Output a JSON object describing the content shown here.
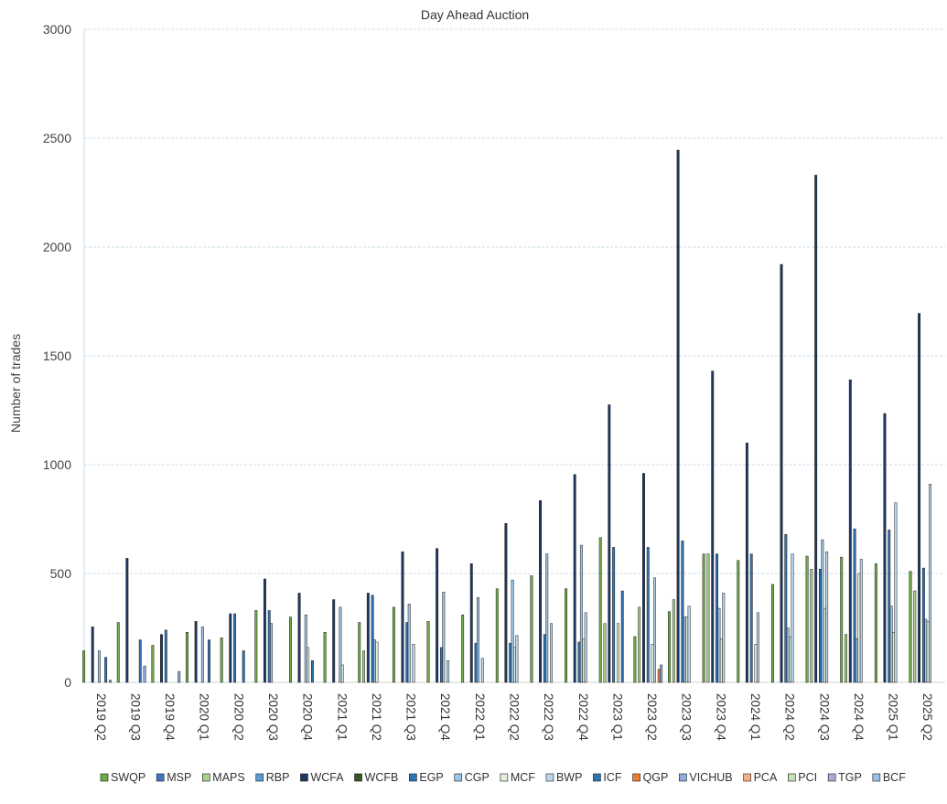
{
  "chart_data": {
    "type": "bar",
    "title": "Day Ahead Auction",
    "xlabel": "",
    "ylabel": "Number of trades",
    "ylim": [
      0,
      3000
    ],
    "yticks": [
      0,
      500,
      1000,
      1500,
      2000,
      2500,
      3000
    ],
    "grid": true,
    "legend_position": "bottom",
    "categories": [
      "2019 Q2",
      "2019 Q3",
      "2019 Q4",
      "2020 Q1",
      "2020 Q2",
      "2020 Q3",
      "2020 Q4",
      "2021 Q1",
      "2021 Q2",
      "2021 Q3",
      "2021 Q4",
      "2022 Q1",
      "2022 Q2",
      "2022 Q3",
      "2022 Q4",
      "2023 Q1",
      "2023 Q2",
      "2023 Q3",
      "2023 Q4",
      "2024 Q1",
      "2024 Q2",
      "2024 Q3",
      "2024 Q4",
      "2025 Q1",
      "2025 Q2"
    ],
    "series": [
      {
        "name": "SWQP",
        "color": "#70ad47",
        "values": [
          145,
          275,
          170,
          230,
          205,
          330,
          300,
          230,
          275,
          345,
          280,
          310,
          430,
          490,
          430,
          665,
          210,
          325,
          590,
          560,
          450,
          580,
          575,
          545,
          510
        ]
      },
      {
        "name": "MSP",
        "color": "#4472c4",
        "values": [
          0,
          0,
          0,
          0,
          0,
          0,
          0,
          0,
          0,
          0,
          0,
          0,
          0,
          0,
          0,
          0,
          0,
          0,
          0,
          0,
          0,
          0,
          0,
          0,
          0
        ]
      },
      {
        "name": "MAPS",
        "color": "#a9d18e",
        "values": [
          0,
          0,
          0,
          0,
          0,
          0,
          0,
          0,
          145,
          0,
          0,
          0,
          0,
          0,
          0,
          270,
          345,
          380,
          590,
          0,
          0,
          520,
          220,
          0,
          420
        ]
      },
      {
        "name": "RBP",
        "color": "#5b9bd5",
        "values": [
          0,
          0,
          0,
          0,
          0,
          0,
          0,
          0,
          0,
          0,
          0,
          0,
          0,
          0,
          0,
          0,
          0,
          0,
          0,
          0,
          0,
          0,
          0,
          0,
          0
        ]
      },
      {
        "name": "WCFA",
        "color": "#1f3864",
        "values": [
          255,
          570,
          220,
          280,
          315,
          475,
          410,
          380,
          410,
          600,
          615,
          545,
          730,
          835,
          955,
          1275,
          960,
          2445,
          1430,
          1100,
          1920,
          2330,
          1390,
          1235,
          1695
        ]
      },
      {
        "name": "WCFB",
        "color": "#375623",
        "values": [
          0,
          0,
          0,
          0,
          0,
          0,
          0,
          0,
          0,
          0,
          0,
          0,
          0,
          0,
          0,
          0,
          0,
          0,
          0,
          0,
          0,
          0,
          0,
          0,
          0
        ]
      },
      {
        "name": "EGP",
        "color": "#2e75b6",
        "values": [
          0,
          0,
          240,
          0,
          315,
          330,
          0,
          0,
          400,
          275,
          160,
          180,
          180,
          220,
          185,
          620,
          620,
          650,
          590,
          590,
          680,
          520,
          705,
          700,
          525
        ]
      },
      {
        "name": "CGP",
        "color": "#9dc3e6",
        "values": [
          145,
          0,
          0,
          255,
          0,
          270,
          310,
          345,
          195,
          360,
          415,
          390,
          470,
          590,
          630,
          0,
          0,
          300,
          340,
          0,
          250,
          655,
          200,
          350,
          290
        ]
      },
      {
        "name": "MCF",
        "color": "#e2efda",
        "values": [
          0,
          0,
          0,
          0,
          0,
          0,
          160,
          80,
          185,
          0,
          0,
          0,
          160,
          0,
          200,
          270,
          175,
          300,
          200,
          175,
          210,
          340,
          500,
          230,
          280
        ]
      },
      {
        "name": "BWP",
        "color": "#bdd7ee",
        "values": [
          0,
          0,
          0,
          0,
          0,
          0,
          0,
          0,
          0,
          175,
          100,
          110,
          215,
          270,
          320,
          0,
          480,
          350,
          410,
          320,
          590,
          600,
          565,
          825,
          910
        ]
      },
      {
        "name": "ICF",
        "color": "#2f75b5",
        "values": [
          115,
          195,
          0,
          195,
          145,
          0,
          100,
          0,
          0,
          0,
          0,
          0,
          0,
          0,
          0,
          420,
          0,
          0,
          0,
          0,
          0,
          0,
          0,
          0,
          0
        ]
      },
      {
        "name": "QGP",
        "color": "#ed7d31",
        "values": [
          0,
          0,
          0,
          0,
          0,
          0,
          0,
          0,
          0,
          0,
          0,
          0,
          0,
          0,
          0,
          0,
          60,
          0,
          0,
          0,
          0,
          0,
          0,
          0,
          0
        ]
      },
      {
        "name": "VICHUB",
        "color": "#8faadc",
        "values": [
          10,
          75,
          50,
          0,
          0,
          0,
          0,
          0,
          0,
          0,
          0,
          0,
          0,
          0,
          0,
          0,
          80,
          0,
          0,
          0,
          0,
          0,
          0,
          0,
          0
        ]
      },
      {
        "name": "PCA",
        "color": "#f4b183",
        "values": [
          0,
          0,
          0,
          0,
          0,
          0,
          0,
          0,
          0,
          0,
          0,
          0,
          0,
          0,
          0,
          0,
          0,
          0,
          0,
          0,
          0,
          0,
          0,
          0,
          0
        ]
      },
      {
        "name": "PCI",
        "color": "#c5e0b4",
        "values": [
          0,
          0,
          0,
          0,
          0,
          0,
          0,
          0,
          0,
          0,
          0,
          0,
          0,
          0,
          0,
          0,
          0,
          0,
          0,
          0,
          0,
          0,
          0,
          0,
          0
        ]
      },
      {
        "name": "TGP",
        "color": "#b4a7d6",
        "values": [
          0,
          0,
          0,
          0,
          0,
          0,
          0,
          0,
          0,
          0,
          0,
          0,
          0,
          0,
          0,
          0,
          0,
          0,
          0,
          0,
          0,
          0,
          0,
          0,
          0
        ]
      },
      {
        "name": "BCF",
        "color": "#9bc2e6",
        "values": [
          0,
          0,
          0,
          0,
          0,
          0,
          0,
          0,
          0,
          0,
          0,
          0,
          0,
          0,
          0,
          0,
          0,
          0,
          0,
          0,
          0,
          0,
          0,
          0,
          0
        ]
      }
    ]
  }
}
